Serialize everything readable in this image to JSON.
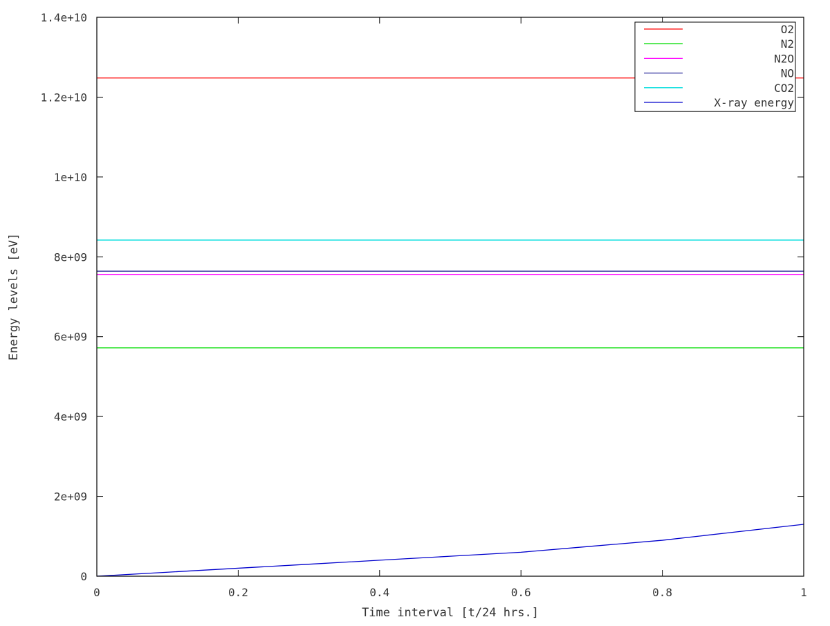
{
  "chart_data": {
    "type": "line",
    "title": "",
    "xlabel": "Time interval [t/24 hrs.]",
    "ylabel": "Energy levels [eV]",
    "xlim": [
      0,
      1
    ],
    "ylim": [
      0,
      14000000000
    ],
    "x_ticks": [
      {
        "value": 0,
        "label": "0"
      },
      {
        "value": 0.2,
        "label": "0.2"
      },
      {
        "value": 0.4,
        "label": "0.4"
      },
      {
        "value": 0.6,
        "label": "0.6"
      },
      {
        "value": 0.8,
        "label": "0.8"
      },
      {
        "value": 1,
        "label": "1"
      }
    ],
    "y_ticks": [
      {
        "value": 0,
        "label": "0"
      },
      {
        "value": 2000000000,
        "label": "2e+09"
      },
      {
        "value": 4000000000,
        "label": "4e+09"
      },
      {
        "value": 6000000000,
        "label": "6e+09"
      },
      {
        "value": 8000000000,
        "label": "8e+09"
      },
      {
        "value": 10000000000,
        "label": "1e+10"
      },
      {
        "value": 12000000000,
        "label": "1.2e+10"
      },
      {
        "value": 14000000000,
        "label": "1.4e+10"
      }
    ],
    "grid": false,
    "legend_position": "top-right",
    "series": [
      {
        "name": "O2",
        "color": "#ff0000",
        "x": [
          0,
          1
        ],
        "y": [
          12480000000,
          12480000000
        ]
      },
      {
        "name": "N2",
        "color": "#00dd00",
        "x": [
          0,
          1
        ],
        "y": [
          5720000000,
          5720000000
        ]
      },
      {
        "name": "N2O",
        "color": "#ff00ff",
        "x": [
          0,
          1
        ],
        "y": [
          7560000000,
          7560000000
        ]
      },
      {
        "name": "NO",
        "color": "#2a2a9a",
        "x": [
          0,
          1
        ],
        "y": [
          7640000000,
          7640000000
        ]
      },
      {
        "name": "CO2",
        "color": "#00dddd",
        "x": [
          0,
          1
        ],
        "y": [
          8420000000,
          8420000000
        ]
      },
      {
        "name": "X-ray energy",
        "color": "#0000cc",
        "x": [
          0,
          0.1,
          0.2,
          0.3,
          0.4,
          0.5,
          0.6,
          0.7,
          0.8,
          0.9,
          1
        ],
        "y": [
          0,
          100000000.0,
          200000000.0,
          300000000.0,
          400000000.0,
          500000000.0,
          600000000.0,
          750000000.0,
          900000000.0,
          1100000000.0,
          1300000000.0
        ]
      }
    ]
  }
}
